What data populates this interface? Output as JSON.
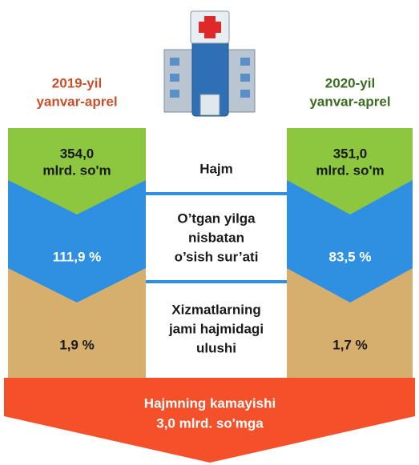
{
  "header": {
    "left": [
      "2019-yil",
      "yanvar-aprel"
    ],
    "right": [
      "2020-yil",
      "yanvar-aprel"
    ]
  },
  "rows": [
    {
      "left": [
        "354,0",
        "mlrd. so'm"
      ],
      "middle": [
        "Hajm"
      ],
      "right": [
        "351,0",
        "mlrd. so'm"
      ]
    },
    {
      "left": [
        "111,9 %"
      ],
      "middle": [
        "O’tgan yilga",
        "nisbatan",
        "o’sish sur’ati"
      ],
      "right": [
        "83,5 %"
      ]
    },
    {
      "left": [
        "1,9 %"
      ],
      "middle": [
        "Xizmatlarning",
        "jami hajmidagi",
        "ulushi"
      ],
      "right": [
        "1,7 %"
      ]
    }
  ],
  "footer": [
    "Hajmning kamayishi",
    "3,0 mlrd. so'mga"
  ]
}
